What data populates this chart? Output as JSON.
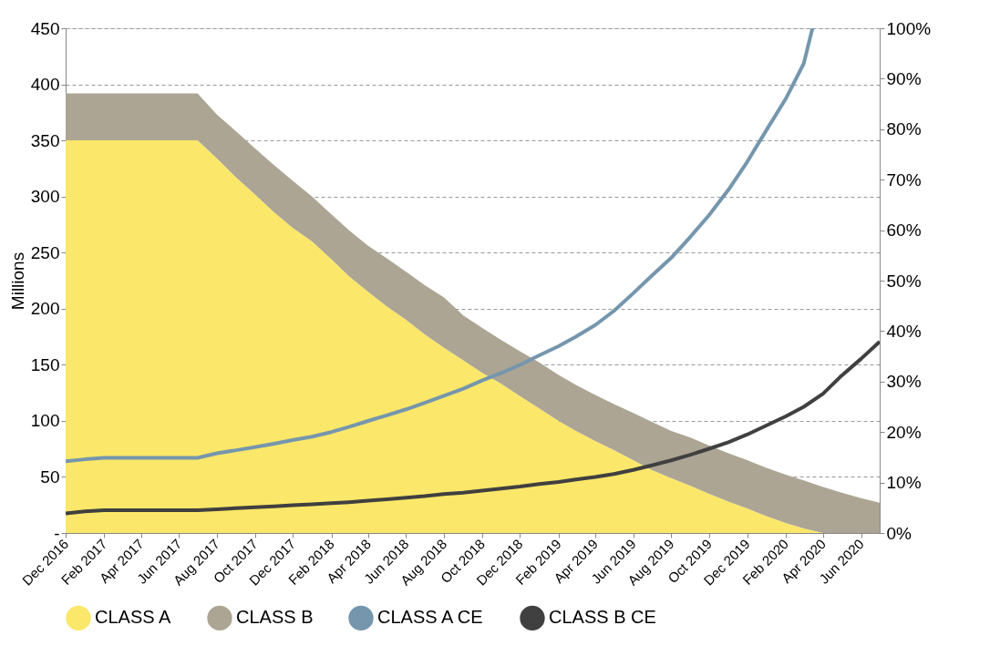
{
  "chart_data": {
    "type": "area",
    "stacked": true,
    "ylabel": "Millions",
    "x": [
      "2016-12",
      "2017-01",
      "2017-02",
      "2017-03",
      "2017-04",
      "2017-05",
      "2017-06",
      "2017-07",
      "2017-08",
      "2017-09",
      "2017-10",
      "2017-11",
      "2017-12",
      "2018-01",
      "2018-02",
      "2018-03",
      "2018-04",
      "2018-05",
      "2018-06",
      "2018-07",
      "2018-08",
      "2018-09",
      "2018-10",
      "2018-11",
      "2018-12",
      "2019-01",
      "2019-02",
      "2019-03",
      "2019-04",
      "2019-05",
      "2019-06",
      "2019-07",
      "2019-08",
      "2019-09",
      "2019-10",
      "2019-11",
      "2019-12",
      "2020-01",
      "2020-02",
      "2020-03",
      "2020-04",
      "2020-05",
      "2020-06",
      "2020-07"
    ],
    "series": [
      {
        "name": "CLASS A",
        "color": "#fbe769",
        "values": [
          350,
          350,
          350,
          350,
          350,
          350,
          350,
          350,
          334,
          317,
          302,
          286,
          272,
          260,
          244,
          229,
          215,
          202,
          190,
          177,
          165,
          154,
          143,
          133,
          122,
          111,
          100,
          91,
          82,
          74,
          65,
          56,
          49,
          42,
          35,
          28,
          22,
          15,
          9,
          4,
          0,
          0,
          0,
          0
        ]
      },
      {
        "name": "CLASS B",
        "color": "#aca594",
        "values": [
          42,
          42,
          42,
          42,
          42,
          42,
          42,
          42,
          39,
          41,
          41,
          42,
          42,
          40,
          40,
          41,
          41,
          43,
          43,
          44,
          45,
          40,
          40,
          39,
          40,
          41,
          41,
          41,
          41,
          41,
          42,
          43,
          42,
          43,
          43,
          43,
          43,
          43,
          43,
          43,
          41,
          36,
          31,
          27
        ]
      },
      {
        "name": "CLASS A CE",
        "type": "line",
        "axis": "y2",
        "color": "#7596ad",
        "x": [
          "2016-12",
          "2017-01",
          "2017-02",
          "2017-03",
          "2017-04",
          "2017-05",
          "2017-06",
          "2017-07",
          "2017-08",
          "2017-09",
          "2017-10",
          "2017-11",
          "2017-12",
          "2018-01",
          "2018-02",
          "2018-03",
          "2018-04",
          "2018-05",
          "2018-06",
          "2018-07",
          "2018-08",
          "2018-09",
          "2018-10",
          "2018-11",
          "2018-12",
          "2019-01",
          "2019-02",
          "2019-03",
          "2019-04",
          "2019-05",
          "2019-06",
          "2019-07",
          "2019-08",
          "2019-09",
          "2019-10",
          "2019-11",
          "2019-12",
          "2020-01",
          "2020-02",
          "2020-03",
          "2020-03-15"
        ],
        "values": [
          14.2,
          14.6,
          14.9,
          14.9,
          14.9,
          14.9,
          14.9,
          14.9,
          15.8,
          16.4,
          17.0,
          17.7,
          18.4,
          19.1,
          20.0,
          21.0,
          22.2,
          23.3,
          24.5,
          25.8,
          27.2,
          28.6,
          30.2,
          31.7,
          33.3,
          35.2,
          37.0,
          38.9,
          41.2,
          44.0,
          47.5,
          51.0,
          54.5,
          58.7,
          63.0,
          68.0,
          73.5,
          79.8,
          86.0,
          93.0,
          100
        ]
      },
      {
        "name": "CLASS B CE",
        "type": "line",
        "axis": "y2",
        "color": "#404040",
        "values": [
          3.9,
          4.3,
          4.5,
          4.5,
          4.5,
          4.5,
          4.5,
          4.5,
          4.7,
          4.9,
          5.1,
          5.3,
          5.5,
          5.7,
          5.9,
          6.1,
          6.4,
          6.7,
          7.0,
          7.3,
          7.7,
          8.0,
          8.4,
          8.8,
          9.2,
          9.7,
          10.1,
          10.6,
          11.1,
          11.7,
          12.5,
          13.4,
          14.4,
          15.5,
          16.7,
          18.0,
          19.5,
          21.3,
          23.1,
          25.0,
          27.6,
          31.2,
          34.5,
          37.9
        ]
      }
    ],
    "xlim": [
      "2016-12",
      "2020-07"
    ],
    "xticks": [
      {
        "value": "2016-12",
        "label": "Dec 2016"
      },
      {
        "value": "2017-02",
        "label": "Feb 2017"
      },
      {
        "value": "2017-04",
        "label": "Apr 2017"
      },
      {
        "value": "2017-06",
        "label": "Jun 2017"
      },
      {
        "value": "2017-08",
        "label": "Aug 2017"
      },
      {
        "value": "2017-10",
        "label": "Oct 2017"
      },
      {
        "value": "2017-12",
        "label": "Dec 2017"
      },
      {
        "value": "2018-02",
        "label": "Feb 2018"
      },
      {
        "value": "2018-04",
        "label": "Apr 2018"
      },
      {
        "value": "2018-06",
        "label": "Jun 2018"
      },
      {
        "value": "2018-08",
        "label": "Aug 2018"
      },
      {
        "value": "2018-10",
        "label": "Oct 2018"
      },
      {
        "value": "2018-12",
        "label": "Dec 2018"
      },
      {
        "value": "2019-02",
        "label": "Feb 2019"
      },
      {
        "value": "2019-04",
        "label": "Apr 2019"
      },
      {
        "value": "2019-06",
        "label": "Jun 2019"
      },
      {
        "value": "2019-08",
        "label": "Aug 2019"
      },
      {
        "value": "2019-10",
        "label": "Oct 2019"
      },
      {
        "value": "2019-12",
        "label": "Dec 2019"
      },
      {
        "value": "2020-02",
        "label": "Feb 2020"
      },
      {
        "value": "2020-04",
        "label": "Apr 2020"
      },
      {
        "value": "2020-06",
        "label": "Jun 2020"
      }
    ],
    "ylim": [
      0,
      450
    ],
    "yticks": [
      {
        "value": 0,
        "label": "-"
      },
      50,
      100,
      150,
      200,
      250,
      300,
      350,
      400,
      450
    ],
    "y2lim": [
      0,
      100
    ],
    "y2ticks": [
      {
        "value": 0,
        "label": "0%"
      },
      {
        "value": 10,
        "label": "10%"
      },
      {
        "value": 20,
        "label": "20%"
      },
      {
        "value": 30,
        "label": "30%"
      },
      {
        "value": 40,
        "label": "40%"
      },
      {
        "value": 50,
        "label": "50%"
      },
      {
        "value": 60,
        "label": "60%"
      },
      {
        "value": 70,
        "label": "70%"
      },
      {
        "value": 80,
        "label": "80%"
      },
      {
        "value": 90,
        "label": "90%"
      },
      {
        "value": 100,
        "label": "100%"
      }
    ],
    "grid": "y",
    "legend": "bottom",
    "line_style": "solid",
    "marker": "none"
  }
}
